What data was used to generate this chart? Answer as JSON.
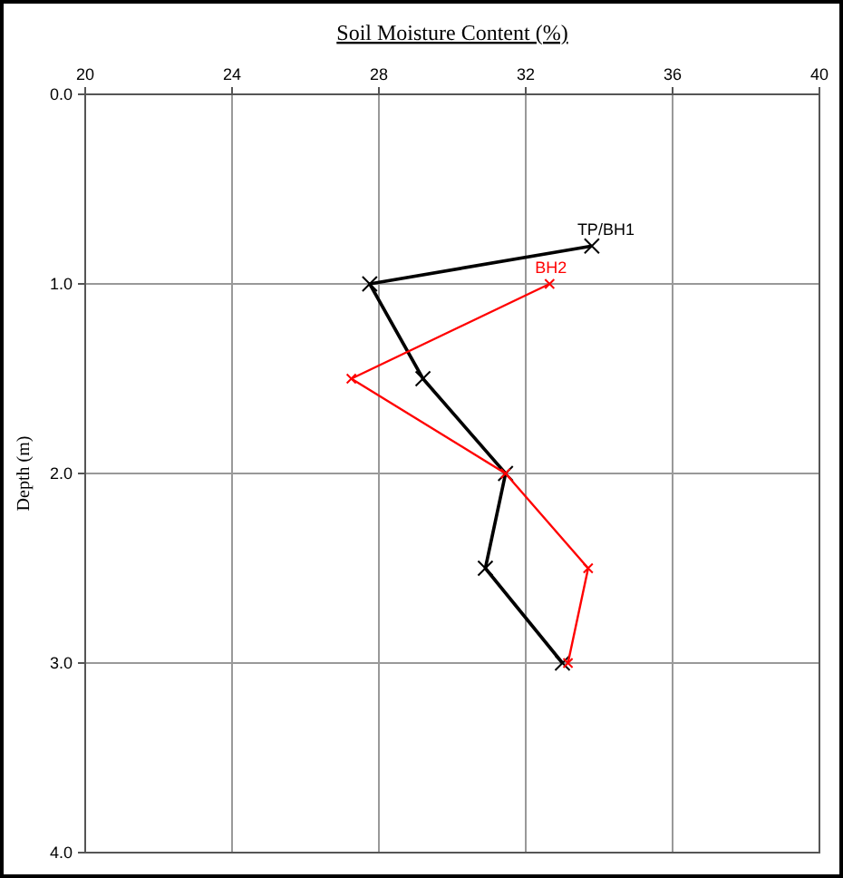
{
  "chart_data": {
    "type": "line",
    "title": "Soil Moisture Content (%)",
    "ylabel": "Depth (m)",
    "xlim": [
      20,
      40
    ],
    "xticks": [
      20,
      24,
      28,
      32,
      36,
      40
    ],
    "ylim": [
      4,
      0
    ],
    "yticks": [
      {
        "value": 0,
        "label": "0.0"
      },
      {
        "value": 1,
        "label": "1.0"
      },
      {
        "value": 2,
        "label": "2.0"
      },
      {
        "value": 3,
        "label": "3.0"
      },
      {
        "value": 4,
        "label": "4.0"
      }
    ],
    "grid": true,
    "marker": "cross",
    "line_style": "solid",
    "series": [
      {
        "name": "TP/BH1",
        "color": "#000000",
        "x": [
          33.8,
          27.75,
          29.2,
          31.45,
          30.9,
          33.0
        ],
        "values": [
          0.8,
          1.0,
          1.5,
          2.0,
          2.5,
          3.0
        ]
      },
      {
        "name": "BH2",
        "color": "#ff0000",
        "x": [
          32.65,
          27.25,
          31.45,
          33.7,
          33.15
        ],
        "values": [
          1.0,
          1.5,
          2.0,
          2.5,
          3.0
        ]
      }
    ]
  }
}
